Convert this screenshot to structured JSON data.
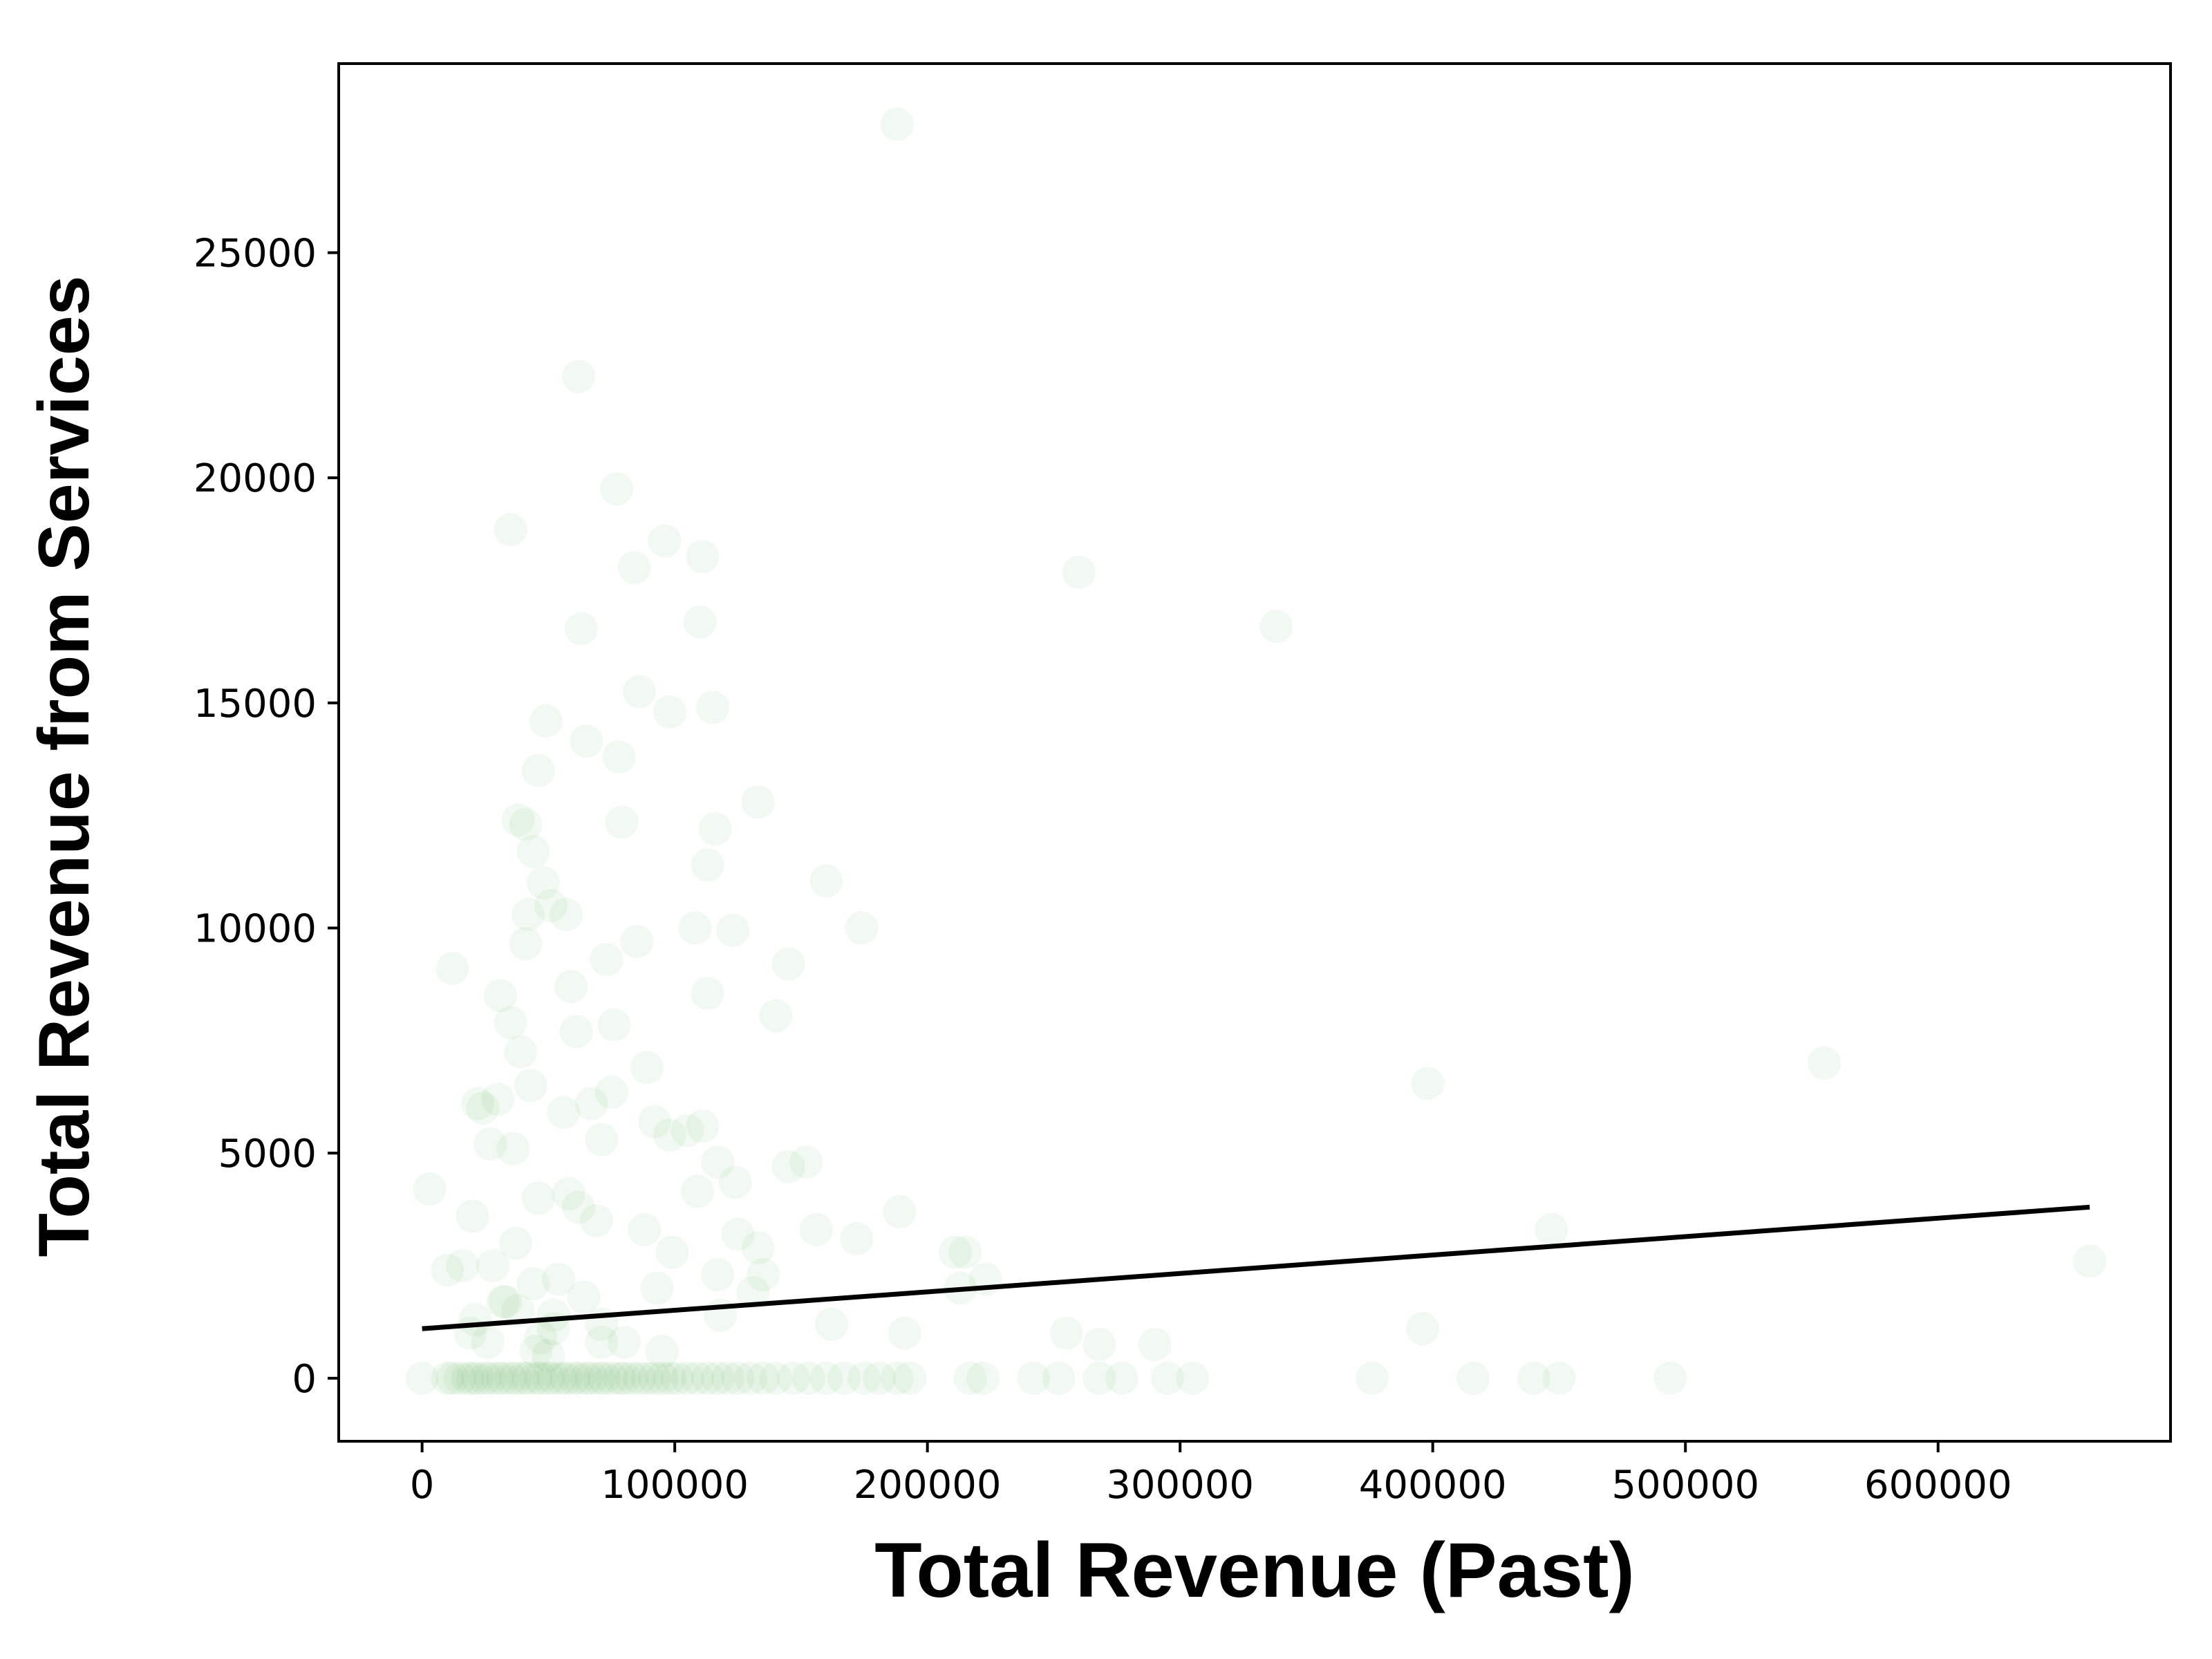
{
  "chart_data": {
    "type": "scatter",
    "title": "",
    "xlabel": "Total Revenue (Past)",
    "ylabel": "Total Revenue from Services",
    "xlim": [
      -33000,
      692000
    ],
    "ylim": [
      -1400,
      29200
    ],
    "xticks": [
      0,
      100000,
      200000,
      300000,
      400000,
      500000,
      600000
    ],
    "yticks": [
      0,
      5000,
      10000,
      15000,
      20000,
      25000
    ],
    "xtick_labels": [
      "0",
      "100000",
      "200000",
      "300000",
      "400000",
      "500000",
      "600000"
    ],
    "ytick_labels": [
      "0",
      "5000",
      "10000",
      "15000",
      "20000",
      "25000"
    ],
    "grid": false,
    "legend": "none",
    "point_color": "#008000",
    "point_alpha": 0.05,
    "line_color": "#000000",
    "series": [
      {
        "kind": "points",
        "x": [
          188000,
          62000,
          77000,
          35000,
          96000,
          111000,
          84000,
          260000,
          110000,
          63000,
          338000,
          86000,
          115000,
          98000,
          49000,
          65000,
          78000,
          46000,
          133000,
          38000,
          41000,
          79000,
          116000,
          44000,
          48000,
          113000,
          160000,
          42000,
          51000,
          57000,
          108000,
          123000,
          174000,
          85000,
          41000,
          73000,
          12000,
          145000,
          113000,
          31000,
          59000,
          35000,
          140000,
          61000,
          76000,
          39000,
          22000,
          24000,
          89000,
          30000,
          98000,
          43000,
          56000,
          67000,
          75000,
          71000,
          92000,
          27000,
          105000,
          111000,
          117000,
          36000,
          20000,
          152000,
          145000,
          124000,
          109000,
          58000,
          3000,
          62000,
          125000,
          69000,
          189000,
          88000,
          156000,
          172000,
          211000,
          133000,
          215000,
          28000,
          16000,
          117000,
          223000,
          213000,
          54000,
          10000,
          32000,
          44000,
          21000,
          64000,
          99000,
          93000,
          131000,
          162000,
          191000,
          135000,
          71000,
          52000,
          37000,
          46000,
          95000,
          398000,
          555000,
          447000,
          660000,
          396000,
          255000,
          268000,
          290000,
          80000,
          118000,
          38000,
          52000,
          71000,
          47000,
          33000,
          26000,
          45000,
          50000,
          19000
        ],
        "y": [
          27850,
          22250,
          19750,
          18850,
          18600,
          18250,
          18000,
          17900,
          16800,
          16650,
          16700,
          15250,
          14900,
          14800,
          14600,
          14150,
          13800,
          13500,
          12800,
          12400,
          12300,
          12350,
          12200,
          11700,
          11000,
          11400,
          11050,
          10300,
          10500,
          10300,
          10000,
          9950,
          10000,
          9700,
          9650,
          9300,
          9100,
          9200,
          8550,
          8500,
          8700,
          7900,
          8050,
          7700,
          7850,
          7250,
          6100,
          6000,
          6900,
          6200,
          5400,
          6500,
          5900,
          6100,
          6350,
          5300,
          5700,
          5200,
          5500,
          5600,
          4800,
          5100,
          3600,
          4800,
          4700,
          4350,
          4150,
          4100,
          4200,
          3800,
          3200,
          3500,
          3700,
          3300,
          3300,
          3100,
          2800,
          2900,
          2800,
          2500,
          2500,
          2300,
          2200,
          2000,
          2200,
          2400,
          1700,
          2100,
          1300,
          1800,
          2800,
          2000,
          1900,
          1200,
          1000,
          2300,
          800,
          1100,
          3000,
          4000,
          600,
          6550,
          7000,
          3300,
          2600,
          1100,
          1000,
          750,
          750,
          800,
          1400,
          1500,
          1400,
          1200,
          900,
          1700,
          800,
          600,
          500,
          1000
        ]
      },
      {
        "kind": "points",
        "x": [
          0,
          10000,
          12000,
          15000,
          18000,
          20000,
          22000,
          25000,
          27000,
          30000,
          32000,
          35000,
          37000,
          40000,
          42000,
          45000,
          47000,
          50000,
          52000,
          55000,
          57000,
          60000,
          62000,
          65000,
          67000,
          70000,
          72000,
          75000,
          78000,
          80000,
          83000,
          86000,
          89000,
          92000,
          95000,
          98000,
          101000,
          105000,
          109000,
          113000,
          117000,
          121000,
          125000,
          130000,
          135000,
          140000,
          147000,
          153000,
          160000,
          167000,
          175000,
          181000,
          188000,
          193000,
          217000,
          222000,
          242000,
          252000,
          268000,
          277000,
          295000,
          305000,
          376000,
          416000,
          440000,
          450000,
          494000
        ],
        "y": [
          0,
          0,
          0,
          0,
          0,
          0,
          0,
          0,
          0,
          0,
          0,
          0,
          0,
          0,
          0,
          0,
          0,
          0,
          0,
          0,
          0,
          0,
          0,
          0,
          0,
          0,
          0,
          0,
          0,
          0,
          0,
          0,
          0,
          0,
          0,
          0,
          0,
          0,
          0,
          0,
          0,
          0,
          0,
          0,
          0,
          0,
          0,
          0,
          0,
          0,
          0,
          0,
          0,
          0,
          0,
          0,
          0,
          0,
          0,
          0,
          0,
          0,
          0,
          0,
          0,
          0,
          0
        ]
      },
      {
        "kind": "line",
        "x": [
          0,
          660000
        ],
        "y": [
          1100,
          3800
        ]
      }
    ]
  }
}
